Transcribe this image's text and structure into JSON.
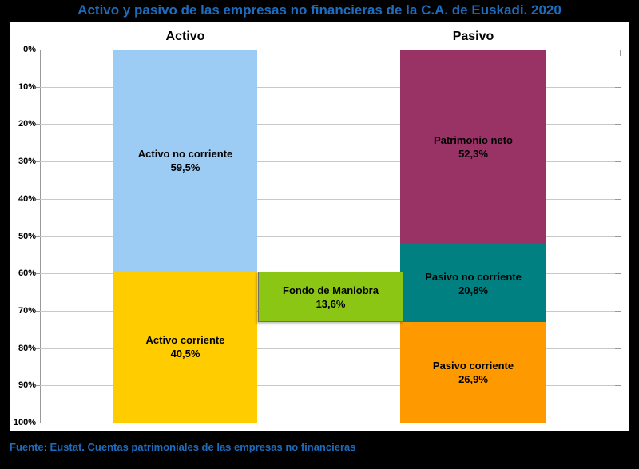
{
  "title": "Activo y pasivo de las empresas no financieras de la C.A. de Euskadi. 2020",
  "source": "Fuente: Eustat. Cuentas patrimoniales de las empresas no financieras",
  "colors": {
    "background": "#000000",
    "panel": "#FFFFFF",
    "title_text": "#1E6CBE",
    "gridline": "#C8C8C8",
    "axis": "#999999",
    "activo_no_corriente": "#9CCCF4",
    "activo_corriente": "#FFCC00",
    "fondo_de_maniobra": "#8CC614",
    "patrimonio_neto": "#993366",
    "pasivo_no_corriente": "#008080",
    "pasivo_corriente": "#FF9900"
  },
  "chart_data": {
    "type": "bar",
    "subtype": "stacked-percentage-columns",
    "title": "Activo y pasivo de las empresas no financieras de la C.A. de Euskadi. 2020",
    "ylim": [
      0,
      100
    ],
    "grid": true,
    "y_ticks": [
      "0%",
      "10%",
      "20%",
      "30%",
      "40%",
      "50%",
      "60%",
      "70%",
      "80%",
      "90%",
      "100%"
    ],
    "groups": [
      {
        "name": "Activo",
        "start": 0,
        "segments": [
          {
            "label": "Activo no corriente",
            "value": 59.5,
            "value_label": "59,5%",
            "color": "#9CCCF4"
          },
          {
            "label": "Activo corriente",
            "value": 40.5,
            "value_label": "40,5%",
            "color": "#FFCC00"
          }
        ]
      },
      {
        "name": "Fondo de Maniobra",
        "start": 59.5,
        "segments": [
          {
            "label": "Fondo de Maniobra",
            "value": 13.6,
            "value_label": "13,6%",
            "color": "#8CC614",
            "outlined": true
          }
        ]
      },
      {
        "name": "Pasivo",
        "start": 0,
        "segments": [
          {
            "label": "Patrimonio neto",
            "value": 52.3,
            "value_label": "52,3%",
            "color": "#993366"
          },
          {
            "label": "Pasivo no corriente",
            "value": 20.8,
            "value_label": "20,8%",
            "color": "#008080"
          },
          {
            "label": "Pasivo corriente",
            "value": 26.9,
            "value_label": "26,9%",
            "color": "#FF9900"
          }
        ]
      }
    ]
  }
}
